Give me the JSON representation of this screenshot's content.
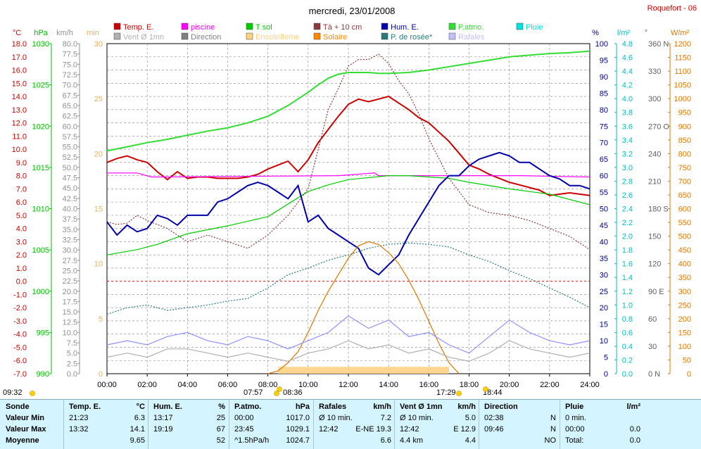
{
  "header": {
    "title": "mercredi, 23/01/2008",
    "station": "Roquefort - 06"
  },
  "legend": [
    {
      "label": "Temp. E.",
      "color": "#cc0000"
    },
    {
      "label": "piscine",
      "color": "#ff00ff"
    },
    {
      "label": "T sol",
      "color": "#00cc00"
    },
    {
      "label": "Tà + 10 cm",
      "color": "#8b3a3a"
    },
    {
      "label": "Hum. E.",
      "color": "#0000aa"
    },
    {
      "label": "P.atmo.",
      "color": "#33dd33"
    },
    {
      "label": "Pluie",
      "color": "#00e0e0"
    },
    {
      "label": "Vent Ø 1mn",
      "color": "#b0b0b0"
    },
    {
      "label": "Direction",
      "color": "#808080"
    },
    {
      "label": "Ensoleilleme",
      "color": "#ffd080"
    },
    {
      "label": "Solaire",
      "color": "#ff8800"
    },
    {
      "label": "P. de rosée*",
      "color": "#2a7a7a"
    },
    {
      "label": "Rafales",
      "color": "#c0c0ff"
    }
  ],
  "axes": {
    "temp": {
      "unit": "°C",
      "ticks": [
        "18.0",
        "17.0",
        "16.0",
        "15.0",
        "14.0",
        "13.0",
        "12.0",
        "11.0",
        "10.0",
        "9.0",
        "8.0",
        "7.0",
        "6.0",
        "5.0",
        "4.0",
        "3.0",
        "2.0",
        "1.0",
        "0.0",
        "-1.0",
        "-2.0",
        "-3.0",
        "-4.0",
        "-5.0",
        "-6.0",
        "-7.0"
      ],
      "color": "#cc0000"
    },
    "press": {
      "unit": "hPa",
      "ticks": [
        "1030",
        "1025",
        "1020",
        "1015",
        "1010",
        "1005",
        "1000",
        "995",
        "990"
      ],
      "color": "#00bb00"
    },
    "wind": {
      "unit": "km/h",
      "ticks": [
        "80.0",
        "77.5",
        "75.0",
        "72.5",
        "70.0",
        "67.5",
        "65.0",
        "62.5",
        "60.0",
        "57.5",
        "55.0",
        "52.5",
        "50.0",
        "47.5",
        "45.0",
        "42.5",
        "40.0",
        "37.5",
        "35.0",
        "32.5",
        "30.0",
        "27.5",
        "25.0",
        "22.5",
        "20.0",
        "17.5",
        "15.0",
        "12.5",
        "10.0",
        "7.5",
        "5.0",
        "2.5",
        "0.0"
      ],
      "color": "#909090"
    },
    "sun": {
      "unit": "min",
      "ticks": [
        "30",
        "25",
        "20",
        "15",
        "10",
        "5",
        "0"
      ],
      "color": "#e8b060"
    },
    "hum": {
      "unit": "%",
      "ticks": [
        "100",
        "95",
        "90",
        "85",
        "80",
        "75",
        "70",
        "65",
        "60",
        "55",
        "50",
        "45",
        "40",
        "35",
        "30",
        "25",
        "20",
        "15",
        "10",
        "5",
        "0"
      ],
      "color": "#000080"
    },
    "rain": {
      "unit": "l/m²",
      "ticks": [
        "4.8",
        "4.6",
        "4.4",
        "4.2",
        "4.0",
        "3.8",
        "3.6",
        "3.4",
        "3.2",
        "3.0",
        "2.8",
        "2.6",
        "2.4",
        "2.2",
        "2.0",
        "1.8",
        "1.6",
        "1.4",
        "1.2",
        "1.0",
        "0.8",
        "0.6",
        "0.4",
        "0.2",
        "0.0"
      ],
      "color": "#00c0c0"
    },
    "dir": {
      "unit": "°",
      "ticks": [
        "360 N",
        "330",
        "300",
        "270 O",
        "240",
        "210",
        "180 S",
        "150",
        "120",
        "90 E",
        "60",
        "30",
        "0 N"
      ],
      "color": "#606060"
    },
    "solar": {
      "unit": "W/m²",
      "ticks": [
        "1200",
        "1150",
        "1100",
        "1050",
        "1000",
        "950",
        "900",
        "850",
        "800",
        "750",
        "700",
        "650",
        "600",
        "550",
        "500",
        "450",
        "400",
        "350",
        "300",
        "250",
        "200",
        "150",
        "100",
        "50",
        "0"
      ],
      "color": "#dd7700"
    },
    "time_ticks": [
      "00:00",
      "02:00",
      "04:00",
      "06:00",
      "08:00",
      "10:00",
      "12:00",
      "14:00",
      "16:00",
      "18:00",
      "20:00",
      "22:00",
      "24:00"
    ]
  },
  "sun_times": {
    "left": "09:32",
    "sunrise": "07:57",
    "noon": "08:36",
    "sunset": "17:29",
    "set2": "18:44"
  },
  "chart_data": {
    "type": "line",
    "x_unit": "hour",
    "xlim": [
      0,
      24
    ],
    "series": [
      {
        "name": "Temp. E.",
        "axis": "°C",
        "color": "#cc0000",
        "x": [
          0,
          0.5,
          1,
          1.5,
          2,
          2.5,
          3,
          3.5,
          4,
          4.5,
          5,
          5.5,
          6,
          6.5,
          7,
          7.5,
          8,
          8.5,
          9,
          9.5,
          10,
          10.5,
          11,
          11.5,
          12,
          12.5,
          13,
          13.5,
          14,
          14.5,
          15,
          15.5,
          16,
          16.5,
          17,
          17.5,
          18,
          18.5,
          19,
          19.5,
          20,
          20.5,
          21,
          21.5,
          22,
          22.5,
          23,
          23.5,
          24
        ],
        "y": [
          9.0,
          9.3,
          9.5,
          9.2,
          9.0,
          8.3,
          7.7,
          8.3,
          7.8,
          7.9,
          7.9,
          7.8,
          7.8,
          7.8,
          7.9,
          8.1,
          8.5,
          8.8,
          9.1,
          8.3,
          9.2,
          10.5,
          11.5,
          12.5,
          13.4,
          13.8,
          13.6,
          13.8,
          14.0,
          13.5,
          13.0,
          12.4,
          12.0,
          11.3,
          10.6,
          9.7,
          8.8,
          8.5,
          8.1,
          7.8,
          7.5,
          7.3,
          7.1,
          6.9,
          6.5,
          6.6,
          6.7,
          6.6,
          6.5
        ]
      },
      {
        "name": "piscine",
        "axis": "°C",
        "color": "#ff00ff",
        "x": [
          0,
          1.5,
          2.2,
          11.5,
          13.3,
          13.5,
          20.5,
          24
        ],
        "y": [
          8.2,
          8.2,
          7.9,
          8.0,
          8.2,
          8.0,
          8.0,
          7.9
        ]
      },
      {
        "name": "T sol",
        "axis": "°C",
        "color": "#00cc00",
        "x": [
          0,
          1.5,
          2.5,
          4,
          6,
          8,
          10,
          11,
          12,
          14,
          15,
          16,
          17,
          18,
          20,
          22,
          24
        ],
        "y": [
          2.0,
          2.4,
          2.8,
          3.6,
          4.2,
          4.9,
          6.8,
          7.3,
          7.7,
          8.0,
          8.0,
          7.9,
          7.8,
          7.5,
          7.0,
          6.6,
          5.8
        ]
      },
      {
        "name": "Tà + 10 cm",
        "axis": "°C",
        "color": "#8b3a3a",
        "x": [
          0,
          0.5,
          1,
          1.5,
          2,
          3,
          4,
          5,
          6,
          7,
          8,
          9,
          10,
          10.5,
          11,
          11.5,
          12,
          12.5,
          13,
          13.5,
          14,
          14.5,
          15,
          15.5,
          16,
          17,
          18,
          19,
          20,
          21,
          22,
          23,
          24
        ],
        "y": [
          4.5,
          4.3,
          4.4,
          5.0,
          4.6,
          4.0,
          3.0,
          3.5,
          3.0,
          2.5,
          3.5,
          5.0,
          7.0,
          10.0,
          13.0,
          14.6,
          16.3,
          16.8,
          16.8,
          17.2,
          16.5,
          15.2,
          14.2,
          12.7,
          10.8,
          7.8,
          5.8,
          5.2,
          5.0,
          4.6,
          4.0,
          3.4,
          2.4
        ]
      },
      {
        "name": "Hum. E.",
        "axis": "%",
        "color": "#0000aa",
        "x": [
          0,
          0.5,
          1,
          1.5,
          2,
          2.5,
          3,
          3.5,
          4,
          4.5,
          5,
          5.5,
          6,
          6.5,
          7,
          7.5,
          8,
          8.5,
          9,
          9.5,
          10,
          10.5,
          11,
          11.5,
          12,
          12.5,
          13,
          13.5,
          14,
          14.5,
          15,
          15.5,
          16,
          16.5,
          17,
          17.5,
          18,
          18.5,
          19,
          19.5,
          20,
          20.5,
          21,
          21.5,
          22,
          22.5,
          23,
          23.5,
          24
        ],
        "y": [
          46,
          42,
          45,
          43,
          44,
          48,
          47,
          45,
          48,
          48,
          48,
          52,
          53,
          55,
          57,
          58,
          57,
          55,
          53,
          57,
          46,
          48,
          44,
          42,
          40,
          38,
          32,
          30,
          33,
          36,
          42,
          47,
          52,
          57,
          60,
          60,
          63,
          65,
          66,
          67,
          66,
          64,
          64,
          62,
          60,
          59,
          57,
          57,
          56
        ]
      },
      {
        "name": "P.atmo.",
        "axis": "hPa",
        "color": "#33dd33",
        "x": [
          0,
          1,
          2,
          3,
          4,
          5,
          6,
          7,
          8,
          9,
          10,
          10.5,
          11,
          11.5,
          12,
          12.5,
          13,
          13.5,
          14,
          15,
          16,
          17,
          18,
          19,
          20,
          21,
          22,
          23,
          24
        ],
        "y": [
          1017.0,
          1017.5,
          1018.0,
          1018.4,
          1018.9,
          1019.4,
          1019.8,
          1020.4,
          1021.2,
          1022.5,
          1024.1,
          1025.0,
          1025.8,
          1026.3,
          1026.5,
          1026.5,
          1026.5,
          1026.4,
          1026.4,
          1026.5,
          1026.8,
          1027.2,
          1027.6,
          1028.0,
          1028.4,
          1028.6,
          1028.8,
          1028.9,
          1029.1
        ]
      },
      {
        "name": "P. de rosée*",
        "axis": "°C",
        "color": "#2a7a7a",
        "x": [
          0,
          1,
          2,
          3,
          4,
          5,
          6,
          7,
          8,
          9,
          10,
          11,
          12,
          13,
          14,
          15,
          16,
          17,
          18,
          19,
          20,
          21,
          22,
          23,
          24
        ],
        "y": [
          -2.5,
          -2.0,
          -1.8,
          -2.2,
          -2.0,
          -1.8,
          -1.5,
          -1.3,
          -0.5,
          0.5,
          1.0,
          1.6,
          2.0,
          2.5,
          2.8,
          2.9,
          2.8,
          2.6,
          2.0,
          1.5,
          0.8,
          0.2,
          -0.5,
          -1.2,
          -2.0
        ]
      },
      {
        "name": "Solaire",
        "axis": "W/m²",
        "color": "#dd7700",
        "x": [
          8.0,
          8.5,
          9.0,
          9.5,
          10.0,
          10.5,
          11.0,
          11.5,
          12.0,
          12.5,
          13.0,
          13.5,
          14.0,
          14.5,
          15.0,
          15.5,
          16.0,
          16.5,
          17.0,
          17.5
        ],
        "y": [
          0,
          10,
          40,
          80,
          150,
          230,
          300,
          360,
          420,
          465,
          480,
          470,
          440,
          400,
          340,
          270,
          190,
          110,
          40,
          0
        ]
      },
      {
        "name": "Rafales",
        "axis": "km/h",
        "color": "#9090ff",
        "x": [
          0,
          1,
          2,
          3,
          4,
          5,
          6,
          7,
          8,
          9,
          10,
          11,
          12,
          13,
          14,
          15,
          16,
          17,
          18,
          19,
          20,
          21,
          22,
          23,
          24
        ],
        "y": [
          7,
          8,
          7,
          9,
          10,
          8,
          7,
          9,
          8,
          6,
          8,
          10,
          14,
          11,
          13,
          9,
          10,
          7,
          5,
          9,
          13,
          10,
          8,
          7,
          8
        ]
      },
      {
        "name": "Vent Ø 1mn",
        "axis": "km/h",
        "color": "#b0b0b0",
        "x": [
          0,
          1,
          2,
          3,
          4,
          5,
          6,
          7,
          8,
          9,
          10,
          11,
          12,
          13,
          14,
          15,
          16,
          17,
          18,
          19,
          20,
          21,
          22,
          23,
          24
        ],
        "y": [
          4,
          5,
          4,
          6,
          6,
          5,
          4,
          5,
          4,
          3,
          5,
          6,
          8,
          6,
          7,
          5,
          6,
          4,
          3,
          5,
          8,
          6,
          5,
          4,
          5
        ]
      }
    ],
    "ensoleillement": {
      "x_start": 8.5,
      "x_end": 17.0,
      "minutes": 0.5
    }
  },
  "summary": {
    "headers": [
      {
        "label": "Sonde",
        "unit": ""
      },
      {
        "label": "Temp. E.",
        "unit": "°C"
      },
      {
        "label": "Hum. E.",
        "unit": "%"
      },
      {
        "label": "P.atmo.",
        "unit": "hPa"
      },
      {
        "label": "Rafales",
        "unit": "km/h"
      },
      {
        "label": "Vent Ø 1mn",
        "unit": "km/h"
      },
      {
        "label": "Direction",
        "unit": ""
      },
      {
        "label": "Pluie",
        "unit": "l/m²"
      }
    ],
    "rows": [
      {
        "label": "Valeur Min",
        "temp": [
          "21:23",
          "6.3"
        ],
        "hum": [
          "13:17",
          "25"
        ],
        "press": [
          "00:00",
          "1017.0"
        ],
        "gust": [
          "Ø 10 min.",
          "7.2"
        ],
        "wind": [
          "Ø 10 min.",
          "5.0"
        ],
        "dir": [
          "02:38",
          "N"
        ],
        "rain": [
          "0 min.",
          ""
        ]
      },
      {
        "label": "Valeur Max",
        "temp": [
          "13:32",
          "14.1"
        ],
        "hum": [
          "19:19",
          "67"
        ],
        "press": [
          "23:45",
          "1029.1"
        ],
        "gust": [
          "12:42",
          "E-NE 19.3"
        ],
        "wind": [
          "12:42",
          "E 12.9"
        ],
        "dir": [
          "09:46",
          "N"
        ],
        "rain": [
          "00:00",
          "0.0"
        ]
      },
      {
        "label": "Moyenne",
        "temp": [
          "",
          "9.65"
        ],
        "hum": [
          "",
          "52"
        ],
        "press": [
          "^1.5hPa/h",
          "1024.7"
        ],
        "gust": [
          "",
          "6.6"
        ],
        "wind": [
          "4.4 km",
          "4.4"
        ],
        "dir": [
          "",
          "NO"
        ],
        "rain": [
          "Total:",
          "0.0"
        ]
      }
    ]
  }
}
